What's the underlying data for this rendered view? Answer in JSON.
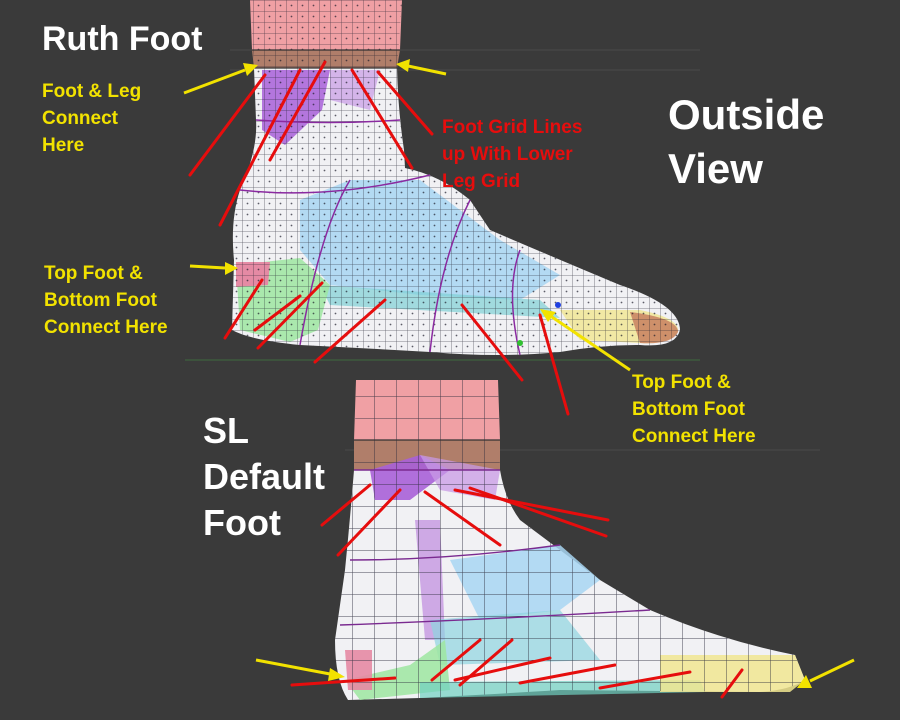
{
  "title": "Ruth Foot",
  "view": [
    "Outside",
    "View"
  ],
  "sl_title": [
    "SL",
    "Default",
    "Foot"
  ],
  "notes": {
    "leg_connect": [
      "Foot & Leg",
      "Connect",
      "Here"
    ],
    "grid_lines": [
      "Foot Grid Lines",
      "up With Lower",
      "Leg Grid"
    ],
    "top_bottom_left": [
      "Top Foot &",
      "Bottom Foot",
      "Connect Here"
    ],
    "top_bottom_right": [
      "Top Foot &",
      "Bottom Foot",
      "Connect Here"
    ]
  },
  "colors": {
    "background": "#3a3a3a",
    "annotation_yellow": "#f2e200",
    "annotation_red": "#e60d0d",
    "title_white": "#ffffff",
    "mesh_white": "#f1f1f4",
    "mesh_pink": "#f0a0a4",
    "mesh_brown": "#b07e6a",
    "mesh_purple": "#a860d8",
    "mesh_blue": "#a8d6f2",
    "mesh_green": "#9ee6a0",
    "mesh_yellow": "#f1e690"
  }
}
